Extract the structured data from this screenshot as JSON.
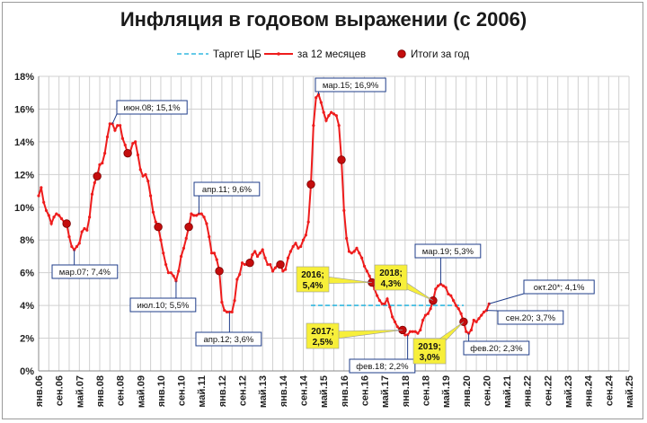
{
  "chart_data": {
    "type": "line",
    "title": "Инфляция в годовом выражении (с 2006)",
    "ylim": [
      0,
      18
    ],
    "y_ticks": [
      "0%",
      "2%",
      "4%",
      "6%",
      "8%",
      "10%",
      "12%",
      "14%",
      "16%",
      "18%"
    ],
    "x_ticks": [
      "янв.06",
      "сен.06",
      "май.07",
      "янв.08",
      "сен.08",
      "май.09",
      "янв.10",
      "сен.10",
      "май.11",
      "янв.12",
      "сен.12",
      "май.13",
      "янв.14",
      "сен.14",
      "май.15",
      "янв.16",
      "сен.16",
      "май.17",
      "янв.18",
      "сен.18",
      "май.19",
      "янв.20",
      "сен.20",
      "май.21",
      "янв.22",
      "сен.22",
      "май.23",
      "янв.24",
      "сен.24",
      "май.25"
    ],
    "grid": true,
    "legend_position": "top",
    "legend": [
      "Таргет ЦБ",
      "за 12 месяцев",
      "Итоги за год"
    ],
    "colors": {
      "series": "#ee1c1c",
      "target": "#33b8e0",
      "year_point": "#c40d0d",
      "grid": "#d0d0d0"
    },
    "series": [
      {
        "name": "за 12 месяцев",
        "x": [
          "2006-01",
          "2006-02",
          "2006-03",
          "2006-04",
          "2006-05",
          "2006-06",
          "2006-07",
          "2006-08",
          "2006-09",
          "2006-10",
          "2006-11",
          "2006-12",
          "2007-01",
          "2007-02",
          "2007-03",
          "2007-04",
          "2007-05",
          "2007-06",
          "2007-07",
          "2007-08",
          "2007-09",
          "2007-10",
          "2007-11",
          "2007-12",
          "2008-01",
          "2008-02",
          "2008-03",
          "2008-04",
          "2008-05",
          "2008-06",
          "2008-07",
          "2008-08",
          "2008-09",
          "2008-10",
          "2008-11",
          "2008-12",
          "2009-01",
          "2009-02",
          "2009-03",
          "2009-04",
          "2009-05",
          "2009-06",
          "2009-07",
          "2009-08",
          "2009-09",
          "2009-10",
          "2009-11",
          "2009-12",
          "2010-01",
          "2010-02",
          "2010-03",
          "2010-04",
          "2010-05",
          "2010-06",
          "2010-07",
          "2010-08",
          "2010-09",
          "2010-10",
          "2010-11",
          "2010-12",
          "2011-01",
          "2011-02",
          "2011-03",
          "2011-04",
          "2011-05",
          "2011-06",
          "2011-07",
          "2011-08",
          "2011-09",
          "2011-10",
          "2011-11",
          "2011-12",
          "2012-01",
          "2012-02",
          "2012-03",
          "2012-04",
          "2012-05",
          "2012-06",
          "2012-07",
          "2012-08",
          "2012-09",
          "2012-10",
          "2012-11",
          "2012-12",
          "2013-01",
          "2013-02",
          "2013-03",
          "2013-04",
          "2013-05",
          "2013-06",
          "2013-07",
          "2013-08",
          "2013-09",
          "2013-10",
          "2013-11",
          "2013-12",
          "2014-01",
          "2014-02",
          "2014-03",
          "2014-04",
          "2014-05",
          "2014-06",
          "2014-07",
          "2014-08",
          "2014-09",
          "2014-10",
          "2014-11",
          "2014-12",
          "2015-01",
          "2015-02",
          "2015-03",
          "2015-04",
          "2015-05",
          "2015-06",
          "2015-07",
          "2015-08",
          "2015-09",
          "2015-10",
          "2015-11",
          "2015-12",
          "2016-01",
          "2016-02",
          "2016-03",
          "2016-04",
          "2016-05",
          "2016-06",
          "2016-07",
          "2016-08",
          "2016-09",
          "2016-10",
          "2016-11",
          "2016-12",
          "2017-01",
          "2017-02",
          "2017-03",
          "2017-04",
          "2017-05",
          "2017-06",
          "2017-07",
          "2017-08",
          "2017-09",
          "2017-10",
          "2017-11",
          "2017-12",
          "2018-01",
          "2018-02",
          "2018-03",
          "2018-04",
          "2018-05",
          "2018-06",
          "2018-07",
          "2018-08",
          "2018-09",
          "2018-10",
          "2018-11",
          "2018-12",
          "2019-01",
          "2019-02",
          "2019-03",
          "2019-04",
          "2019-05",
          "2019-06",
          "2019-07",
          "2019-08",
          "2019-09",
          "2019-10",
          "2019-11",
          "2019-12",
          "2020-01",
          "2020-02",
          "2020-03",
          "2020-04",
          "2020-05",
          "2020-06",
          "2020-07",
          "2020-08",
          "2020-09",
          "2020-10"
        ],
        "values": [
          10.7,
          11.2,
          10.3,
          9.8,
          9.5,
          9.0,
          9.4,
          9.6,
          9.5,
          9.3,
          9.1,
          9.0,
          8.2,
          7.6,
          7.4,
          7.6,
          7.8,
          8.5,
          8.7,
          8.6,
          9.4,
          10.8,
          11.5,
          11.9,
          12.6,
          12.7,
          13.3,
          14.3,
          15.1,
          15.1,
          14.7,
          15.0,
          15.0,
          14.2,
          13.8,
          13.3,
          13.4,
          13.9,
          14.0,
          13.2,
          12.3,
          11.9,
          12.0,
          11.6,
          10.7,
          9.7,
          9.1,
          8.8,
          8.0,
          7.2,
          6.5,
          6.0,
          6.0,
          5.8,
          5.5,
          6.1,
          7.0,
          7.5,
          8.1,
          8.8,
          9.6,
          9.5,
          9.5,
          9.6,
          9.6,
          9.4,
          9.0,
          8.2,
          7.2,
          7.2,
          6.8,
          6.1,
          4.2,
          3.7,
          3.6,
          3.6,
          3.6,
          4.3,
          5.6,
          5.9,
          6.6,
          6.5,
          6.5,
          6.6,
          7.1,
          7.3,
          7.0,
          7.2,
          7.4,
          6.9,
          6.5,
          6.5,
          6.1,
          6.3,
          6.5,
          6.5,
          6.1,
          6.2,
          6.9,
          7.3,
          7.6,
          7.8,
          7.5,
          7.6,
          8.0,
          8.3,
          9.1,
          11.4,
          15.0,
          16.7,
          16.9,
          16.4,
          15.8,
          15.3,
          15.6,
          15.8,
          15.7,
          15.6,
          15.0,
          12.9,
          9.8,
          8.1,
          7.3,
          7.2,
          7.3,
          7.5,
          7.2,
          6.9,
          6.4,
          6.1,
          5.8,
          5.4,
          5.0,
          4.6,
          4.3,
          4.1,
          4.1,
          4.4,
          3.9,
          3.3,
          3.0,
          2.7,
          2.5,
          2.5,
          2.2,
          2.2,
          2.4,
          2.4,
          2.4,
          2.3,
          2.5,
          3.1,
          3.4,
          3.5,
          3.8,
          4.3,
          5.0,
          5.2,
          5.3,
          5.2,
          5.1,
          4.7,
          4.6,
          4.3,
          4.0,
          3.8,
          3.5,
          3.0,
          2.4,
          2.3,
          2.5,
          3.1,
          3.0,
          3.2,
          3.4,
          3.6,
          3.7,
          4.1
        ]
      },
      {
        "name": "Таргет ЦБ",
        "x": [
          "2014-12",
          "2019-12"
        ],
        "values": [
          4.0,
          4.0
        ]
      },
      {
        "name": "Итоги за год",
        "x": [
          "2006-12",
          "2007-12",
          "2008-12",
          "2009-12",
          "2010-12",
          "2011-12",
          "2012-12",
          "2013-12",
          "2014-12",
          "2015-12",
          "2016-12",
          "2017-12",
          "2018-12",
          "2019-12"
        ],
        "values": [
          9.0,
          11.9,
          13.3,
          8.8,
          8.8,
          6.1,
          6.6,
          6.5,
          11.4,
          12.9,
          5.4,
          2.5,
          4.3,
          3.0
        ]
      }
    ],
    "annotations": [
      {
        "text": "мар.07; 7,4%",
        "x": "2007-03",
        "y": 7.4,
        "style": "white"
      },
      {
        "text": "июн.08; 15,1%",
        "x": "2008-06",
        "y": 15.1,
        "style": "white"
      },
      {
        "text": "июл.10; 5,5%",
        "x": "2010-07",
        "y": 5.5,
        "style": "white"
      },
      {
        "text": "апр.11; 9,6%",
        "x": "2011-04",
        "y": 9.6,
        "style": "white"
      },
      {
        "text": "апр.12; 3,6%",
        "x": "2012-04",
        "y": 3.6,
        "style": "white"
      },
      {
        "text": "мар.15; 16,9%",
        "x": "2015-03",
        "y": 16.9,
        "style": "white"
      },
      {
        "text": "фев.18; 2,2%",
        "x": "2018-02",
        "y": 2.2,
        "style": "white"
      },
      {
        "text": "мар.19; 5,3%",
        "x": "2019-03",
        "y": 5.3,
        "style": "white"
      },
      {
        "text": "фев.20; 2,3%",
        "x": "2020-02",
        "y": 2.3,
        "style": "white"
      },
      {
        "text": "сен.20; 3,7%",
        "x": "2020-09",
        "y": 3.7,
        "style": "white"
      },
      {
        "text": "окт.20*; 4,1%",
        "x": "2020-10",
        "y": 4.1,
        "style": "white"
      },
      {
        "text": [
          "2016;",
          "5,4%"
        ],
        "x": "2016-12",
        "y": 5.4,
        "style": "yellow"
      },
      {
        "text": [
          "2017;",
          "2,5%"
        ],
        "x": "2017-12",
        "y": 2.5,
        "style": "yellow"
      },
      {
        "text": [
          "2018;",
          "4,3%"
        ],
        "x": "2018-12",
        "y": 4.3,
        "style": "yellow"
      },
      {
        "text": [
          "2019;",
          "3,0%"
        ],
        "x": "2019-12",
        "y": 3.0,
        "style": "yellow"
      }
    ]
  }
}
